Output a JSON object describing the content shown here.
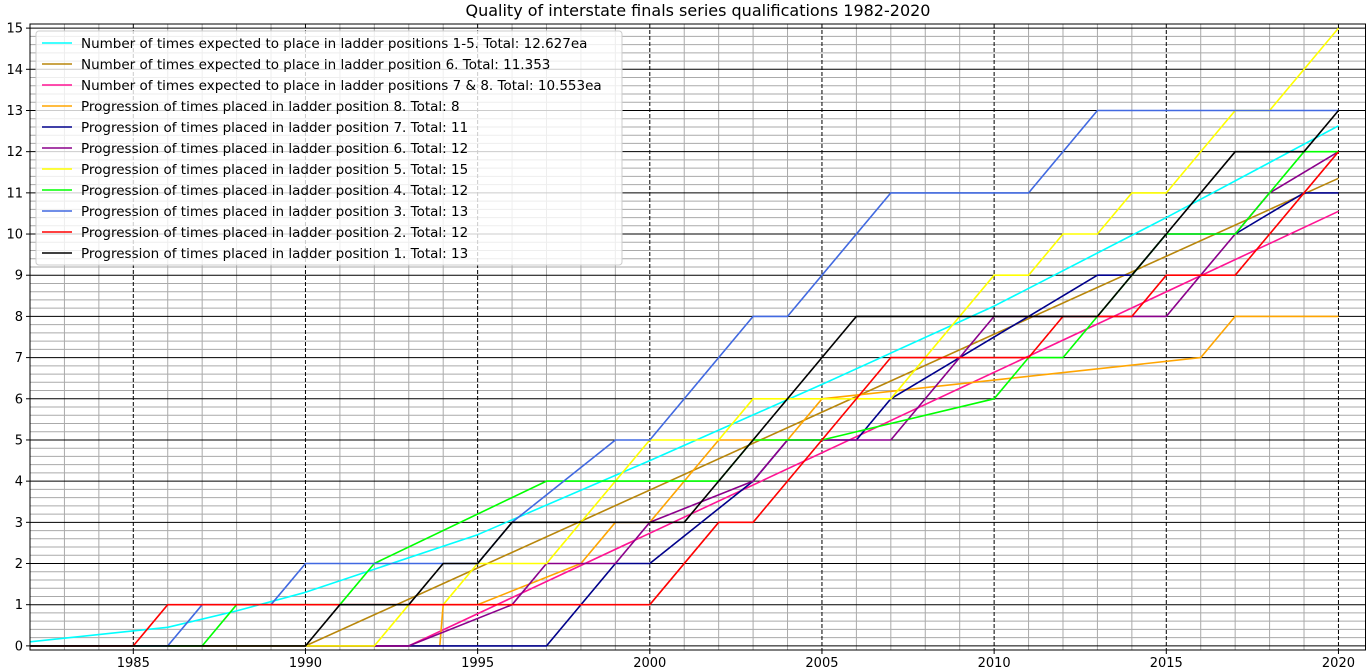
{
  "chart_data": {
    "type": "line",
    "title": "Quality of interstate finals series qualifications 1982-2020",
    "xlabel": "",
    "ylabel": "",
    "xlim": [
      1982,
      2020.8
    ],
    "ylim": [
      -0.1,
      15.1
    ],
    "x_ticks": [
      "1985",
      "1990",
      "1995",
      "2000",
      "2005",
      "2010",
      "2015",
      "2020"
    ],
    "y_ticks": [
      "0",
      "1",
      "2",
      "3",
      "4",
      "5",
      "6",
      "7",
      "8",
      "9",
      "10",
      "11",
      "12",
      "13",
      "14",
      "15"
    ],
    "grid": "major and minor",
    "legend_position": "upper-left",
    "series": [
      {
        "name": "Number of times expected to place in ladder positions 1-5. Total: 12.627ea",
        "color": "#00ffff",
        "x": [
          1982,
          1986,
          1988,
          1990,
          1995,
          2000,
          2005,
          2010,
          2015,
          2020
        ],
        "y": [
          0.1,
          0.45,
          0.85,
          1.3,
          2.7,
          4.5,
          6.35,
          8.25,
          10.4,
          12.627
        ]
      },
      {
        "name": "Number of times expected to place in ladder position 6. Total: 11.353",
        "color": "#b8860b",
        "x": [
          1982,
          1990,
          2020
        ],
        "y": [
          0,
          0,
          11.353
        ]
      },
      {
        "name": "Number of times expected to place in ladder positions 7 & 8. Total: 10.553ea",
        "color": "#ff1493",
        "x": [
          1982,
          1993,
          2020
        ],
        "y": [
          0,
          0,
          10.553
        ]
      },
      {
        "name": "Progression of times placed in ladder position 8. Total: 8",
        "color": "#ffa500",
        "x": [
          1982,
          1993.9,
          1994,
          1995,
          1998,
          1999,
          2000,
          2002,
          2003,
          2004,
          2005,
          2016,
          2017,
          2020
        ],
        "y": [
          0,
          0,
          1,
          1,
          2,
          3,
          3,
          5,
          5,
          5,
          6,
          7,
          8,
          8
        ]
      },
      {
        "name": "Progression of times placed in ladder position 7. Total: 11",
        "color": "#00008b",
        "x": [
          1982,
          1997,
          1999,
          2000,
          2003,
          2004,
          2006,
          2007,
          2011,
          2013,
          2014,
          2015,
          2017,
          2019,
          2020
        ],
        "y": [
          0,
          0,
          2,
          2,
          4,
          5,
          5,
          6,
          8,
          9,
          9,
          10,
          10,
          11,
          11
        ]
      },
      {
        "name": "Progression of times placed in ladder position 6. Total: 12",
        "color": "#8b008b",
        "x": [
          1982,
          1993,
          1996,
          1997,
          1999,
          2000,
          2003,
          2004,
          2005,
          2006,
          2007,
          2010,
          2014,
          2015,
          2016,
          2017,
          2018,
          2020
        ],
        "y": [
          0,
          0,
          1,
          2,
          2,
          3,
          4,
          5,
          5,
          5,
          5,
          8,
          8,
          8,
          9,
          10,
          11,
          12
        ]
      },
      {
        "name": "Progression of times placed in ladder position 5. Total: 15",
        "color": "#ffff00",
        "x": [
          1982,
          1990,
          1992,
          1993,
          1994,
          1995,
          1997,
          1998,
          2000,
          2002,
          2003,
          2004,
          2007,
          2010,
          2011,
          2012,
          2013,
          2014,
          2015,
          2017,
          2018,
          2020
        ],
        "y": [
          0,
          0,
          0,
          1,
          1,
          2,
          2,
          3,
          5,
          5,
          6,
          6,
          6,
          9,
          9,
          10,
          10,
          11,
          11,
          13,
          13,
          15
        ]
      },
      {
        "name": "Progression of times placed in ladder position 4. Total: 12",
        "color": "#00ff00",
        "x": [
          1982,
          1987,
          1988,
          1990,
          1991,
          1992,
          1997,
          2002,
          2003,
          2004,
          2005,
          2010,
          2011,
          2012,
          2013,
          2014,
          2015,
          2017,
          2019,
          2020
        ],
        "y": [
          0,
          0,
          1,
          1,
          1,
          2,
          4,
          4,
          5,
          5,
          5,
          6,
          7,
          7,
          8,
          9,
          10,
          10,
          12,
          12
        ]
      },
      {
        "name": "Progression of times placed in ladder position 3. Total: 13",
        "color": "#4169e1",
        "x": [
          1982,
          1986,
          1987,
          1989,
          1990,
          1995,
          1996,
          1999,
          2000,
          2003,
          2004,
          2007,
          2011,
          2013,
          2017,
          2020
        ],
        "y": [
          0,
          0,
          1,
          1,
          2,
          2,
          3,
          5,
          5,
          8,
          8,
          11,
          11,
          13,
          13,
          13
        ]
      },
      {
        "name": "Progression of times placed in ladder position 2. Total: 12",
        "color": "#ff0000",
        "x": [
          1982,
          1985,
          1986,
          2000,
          2002,
          2003,
          2007,
          2011,
          2012,
          2014,
          2015,
          2017,
          2020
        ],
        "y": [
          0,
          0,
          1,
          1,
          3,
          3,
          7,
          7,
          8,
          8,
          9,
          9,
          12
        ]
      },
      {
        "name": "Progression of times placed in ladder position 1. Total: 13",
        "color": "#000000",
        "x": [
          1982,
          1990,
          1991,
          1993,
          1994,
          1995,
          1996,
          2001,
          2006,
          2013,
          2015,
          2017,
          2019,
          2020
        ],
        "y": [
          0,
          0,
          1,
          1,
          2,
          2,
          3,
          3,
          8,
          8,
          10,
          12,
          12,
          13
        ]
      }
    ]
  }
}
